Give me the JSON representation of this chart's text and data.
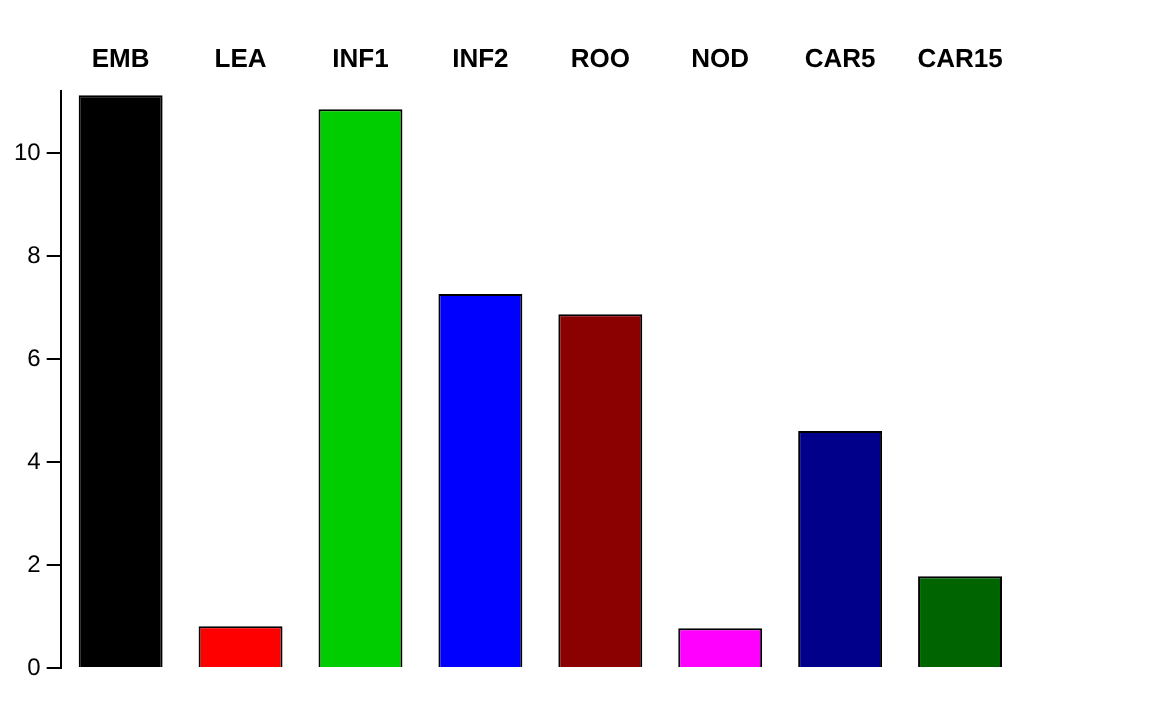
{
  "chart_data": {
    "type": "bar",
    "categories": [
      "EMB",
      "LEA",
      "INF1",
      "INF2",
      "ROO",
      "NOD",
      "CAR5",
      "CAR15"
    ],
    "values": [
      11.12,
      0.81,
      10.85,
      7.26,
      6.87,
      0.77,
      4.6,
      1.78
    ],
    "colors": [
      "#000000",
      "#ff0000",
      "#00cd00",
      "#0000ff",
      "#8b0000",
      "#ff00ff",
      "#00008b",
      "#006400"
    ],
    "ylim": [
      0,
      11.2
    ],
    "yticks": [
      0,
      2,
      4,
      6,
      8,
      10
    ],
    "grid": false,
    "legend": false
  }
}
